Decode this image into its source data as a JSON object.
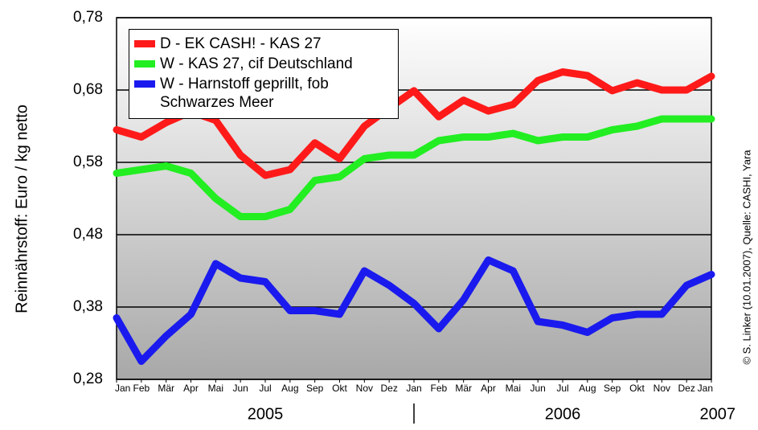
{
  "chart_data": {
    "type": "line",
    "ylabel": "Reinnährstoff: Euro / kg netto",
    "source": "© S. Linker (10.01.2007), Quelle: CASHI, Yara",
    "x": [
      0,
      1,
      2,
      3,
      4,
      5,
      6,
      7,
      8,
      9,
      10,
      11,
      12,
      13,
      14,
      15,
      16,
      17,
      18,
      19,
      20,
      21,
      22,
      23,
      24
    ],
    "xlim": [
      0,
      24
    ],
    "xticks": [
      {
        "value": 0,
        "label": "Jan"
      },
      {
        "value": 1,
        "label": "Feb"
      },
      {
        "value": 2,
        "label": "Mär"
      },
      {
        "value": 3,
        "label": "Apr"
      },
      {
        "value": 4,
        "label": "Mai"
      },
      {
        "value": 5,
        "label": "Jun"
      },
      {
        "value": 6,
        "label": "Jul"
      },
      {
        "value": 7,
        "label": "Aug"
      },
      {
        "value": 8,
        "label": "Sep"
      },
      {
        "value": 9,
        "label": "Okt"
      },
      {
        "value": 10,
        "label": "Nov"
      },
      {
        "value": 11,
        "label": "Dez"
      },
      {
        "value": 12,
        "label": "Jan"
      },
      {
        "value": 13,
        "label": "Feb"
      },
      {
        "value": 14,
        "label": "Mär"
      },
      {
        "value": 15,
        "label": "Apr"
      },
      {
        "value": 16,
        "label": "Mai"
      },
      {
        "value": 17,
        "label": "Jun"
      },
      {
        "value": 18,
        "label": "Jul"
      },
      {
        "value": 19,
        "label": "Aug"
      },
      {
        "value": 20,
        "label": "Sep"
      },
      {
        "value": 21,
        "label": "Okt"
      },
      {
        "value": 22,
        "label": "Nov"
      },
      {
        "value": 23,
        "label": "Dez"
      },
      {
        "value": 24,
        "label": "Jan"
      }
    ],
    "years": [
      "2005",
      "2006",
      "2007"
    ],
    "ylim": [
      0.28,
      0.78
    ],
    "yticks": [
      {
        "value": 0.28,
        "label": "0,28"
      },
      {
        "value": 0.38,
        "label": "0,38"
      },
      {
        "value": 0.48,
        "label": "0,48"
      },
      {
        "value": 0.58,
        "label": "0,58"
      },
      {
        "value": 0.68,
        "label": "0,68"
      },
      {
        "value": 0.78,
        "label": "0,78"
      }
    ],
    "grid": true,
    "legend": "upper left",
    "series": [
      {
        "name": "D - EK CASH! - KAS 27",
        "color": "#ff1a1a",
        "values": [
          0.625,
          0.615,
          0.635,
          0.65,
          0.638,
          0.59,
          0.562,
          0.57,
          0.607,
          0.585,
          0.63,
          0.655,
          0.679,
          0.643,
          0.666,
          0.651,
          0.66,
          0.693,
          0.705,
          0.7,
          0.679,
          0.69,
          0.68,
          0.68,
          0.699
        ]
      },
      {
        "name": "W - KAS 27, cif Deutschland",
        "color": "#22ee22",
        "values": [
          0.565,
          0.57,
          0.575,
          0.565,
          0.53,
          0.505,
          0.505,
          0.515,
          0.555,
          0.56,
          0.585,
          0.59,
          0.59,
          0.61,
          0.615,
          0.615,
          0.62,
          0.61,
          0.615,
          0.615,
          0.625,
          0.63,
          0.64,
          0.64,
          0.64
        ]
      },
      {
        "name": "W - Harnstoff geprillt, fob Schwarzes Meer",
        "color": "#1a1aee",
        "values": [
          0.365,
          0.305,
          0.34,
          0.37,
          0.44,
          0.42,
          0.415,
          0.375,
          0.375,
          0.37,
          0.43,
          0.41,
          0.385,
          0.35,
          0.39,
          0.445,
          0.43,
          0.36,
          0.355,
          0.345,
          0.365,
          0.37,
          0.37,
          0.41,
          0.425
        ]
      }
    ]
  }
}
